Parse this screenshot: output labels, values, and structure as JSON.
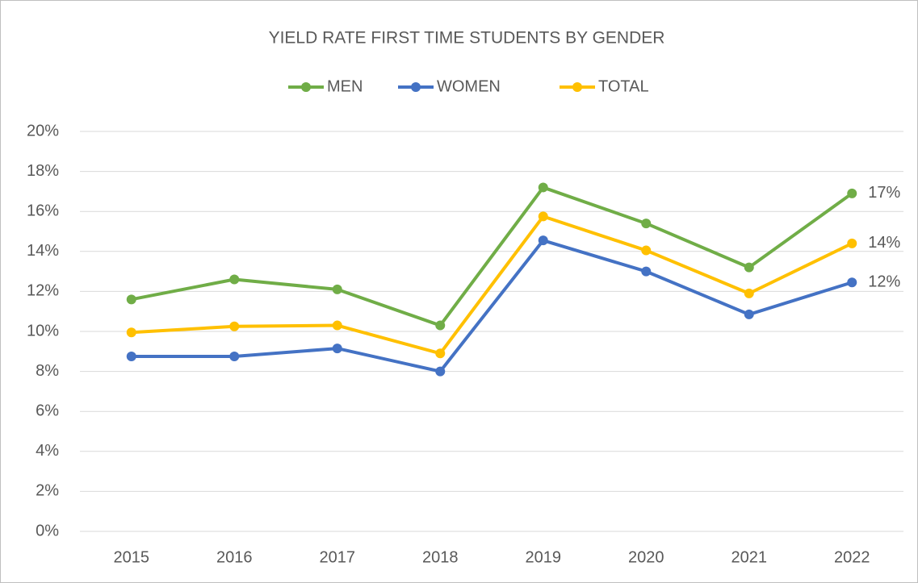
{
  "chart_data": {
    "type": "line",
    "title": "YIELD RATE FIRST TIME STUDENTS BY GENDER",
    "categories": [
      "2015",
      "2016",
      "2017",
      "2018",
      "2019",
      "2020",
      "2021",
      "2022"
    ],
    "series": [
      {
        "name": "MEN",
        "color": "#70ad47",
        "values": [
          11.6,
          12.6,
          12.1,
          10.3,
          17.2,
          15.4,
          13.2,
          16.9
        ],
        "value_labels": [
          null,
          null,
          null,
          null,
          null,
          null,
          null,
          "17%"
        ]
      },
      {
        "name": "WOMEN",
        "color": "#4472c4",
        "values": [
          8.75,
          8.75,
          9.15,
          8.0,
          14.55,
          13.0,
          10.85,
          12.45
        ],
        "value_labels": [
          null,
          null,
          null,
          null,
          null,
          null,
          null,
          "12%"
        ]
      },
      {
        "name": "TOTAL",
        "color": "#ffc000",
        "values": [
          9.95,
          10.25,
          10.3,
          8.9,
          15.75,
          14.05,
          11.9,
          14.4
        ],
        "value_labels": [
          null,
          null,
          null,
          null,
          null,
          null,
          null,
          "14%"
        ]
      }
    ],
    "ylim": [
      0,
      20
    ],
    "yticks": [
      {
        "value": 0,
        "label": "0%"
      },
      {
        "value": 2,
        "label": "2%"
      },
      {
        "value": 4,
        "label": "4%"
      },
      {
        "value": 6,
        "label": "6%"
      },
      {
        "value": 8,
        "label": "8%"
      },
      {
        "value": 10,
        "label": "10%"
      },
      {
        "value": 12,
        "label": "12%"
      },
      {
        "value": 14,
        "label": "14%"
      },
      {
        "value": 16,
        "label": "16%"
      },
      {
        "value": 18,
        "label": "18%"
      },
      {
        "value": 20,
        "label": "20%"
      }
    ],
    "grid": true,
    "legend": "top"
  }
}
